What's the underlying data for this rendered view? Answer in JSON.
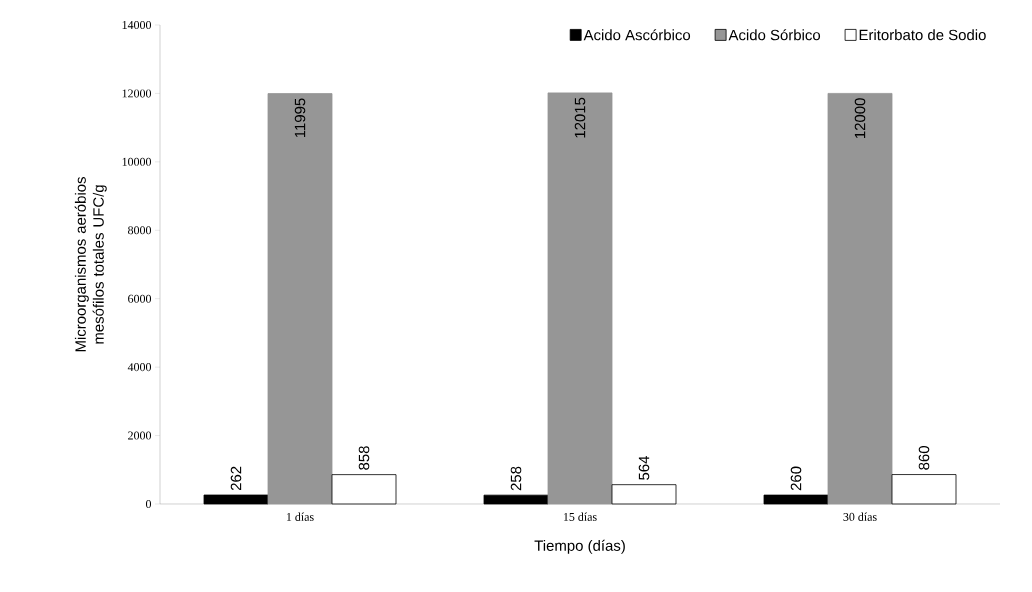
{
  "chart_data": {
    "type": "bar",
    "xlabel": "Tiempo (días)",
    "ylabel": "Microorganismos aeróbios mesófilos totales UFC/g",
    "categories": [
      "1 días",
      "15 días",
      "30 días"
    ],
    "series": [
      {
        "name": "Acido Ascórbico",
        "color": "#000000",
        "values": [
          262,
          258,
          260
        ]
      },
      {
        "name": "Acido Sórbico",
        "color": "#969696",
        "values": [
          11995,
          12015,
          12000
        ]
      },
      {
        "name": "Eritorbato de Sodio",
        "color": "#ffffff",
        "values": [
          858,
          564,
          860
        ]
      }
    ],
    "ylim": [
      0,
      14000
    ],
    "yticks": [
      0,
      2000,
      4000,
      6000,
      8000,
      10000,
      12000,
      14000
    ],
    "data_labels": true,
    "legend": "top right",
    "grid": false
  }
}
